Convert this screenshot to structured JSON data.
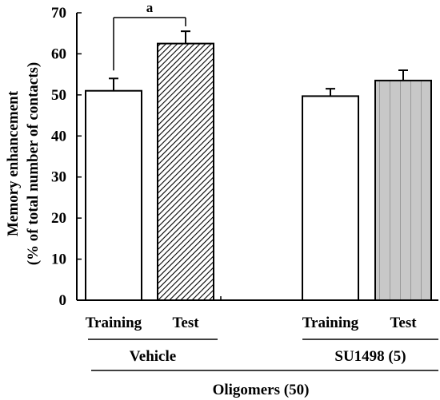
{
  "chart_data": {
    "type": "bar",
    "ylabel_line1": "Memory enhancement",
    "ylabel_line2": "(% of total number of contacts)",
    "ylim": [
      0,
      70
    ],
    "yticks": [
      0,
      10,
      20,
      30,
      40,
      50,
      60,
      70
    ],
    "grid": false,
    "bars": [
      {
        "label": "Training",
        "value": 51.0,
        "error": 3.0,
        "fill": "white"
      },
      {
        "label": "Test",
        "value": 62.5,
        "error": 3.0,
        "fill": "hatched"
      },
      {
        "label": "Training",
        "value": 49.7,
        "error": 1.8,
        "fill": "white"
      },
      {
        "label": "Test",
        "value": 53.5,
        "error": 2.5,
        "fill": "gray-striped"
      }
    ],
    "groups": [
      {
        "label": "Vehicle"
      },
      {
        "label": "SU1498 (5)"
      }
    ],
    "overall_group": "Oligomers (50)",
    "significance": {
      "label": "a",
      "from_bar": 0,
      "to_bar": 1
    },
    "colors": {
      "bar_edge": "#000000",
      "gray_fill": "#c8c8c8",
      "gray_stripe": "#9a9a9a"
    }
  }
}
